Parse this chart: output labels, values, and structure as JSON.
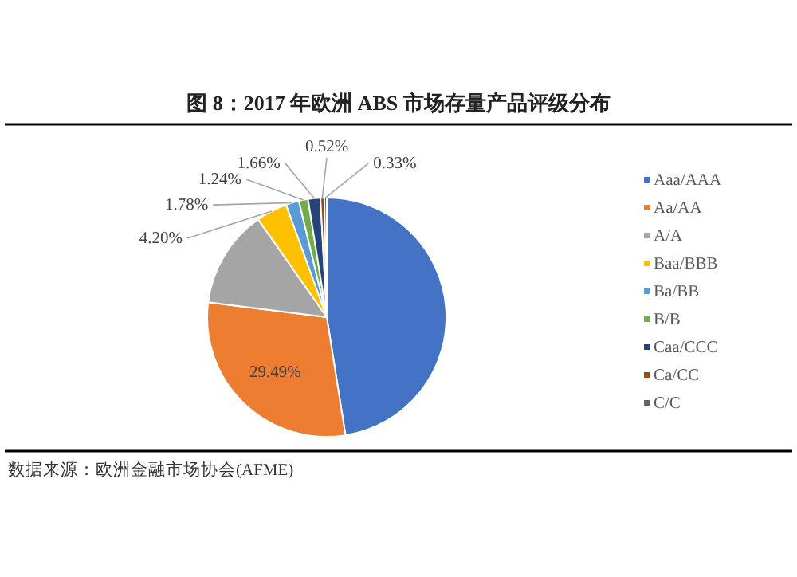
{
  "chart_data": {
    "type": "pie",
    "title": "图 8：2017 年欧洲 ABS 市场存量产品评级分布",
    "categories": [
      "Aaa/AAA",
      "Aa/AA",
      "A/A",
      "Baa/BBB",
      "Ba/BB",
      "B/B",
      "Caa/CCC",
      "Ca/CC",
      "C/C"
    ],
    "values": [
      47.5,
      29.49,
      13.28,
      4.2,
      1.78,
      1.24,
      1.66,
      0.52,
      0.33
    ],
    "colors": [
      "#4472c4",
      "#ed7d31",
      "#a5a5a5",
      "#ffc000",
      "#5b9bd5",
      "#70ad47",
      "#264478",
      "#9e480e",
      "#636363"
    ],
    "value_labels": [
      null,
      "29.49%",
      null,
      "4.20%",
      "1.78%",
      "1.24%",
      "1.66%",
      "0.52%",
      "0.33%"
    ],
    "legend": "right",
    "annotations": [
      "数据来源：欧洲金融市场协会(AFME)"
    ]
  }
}
